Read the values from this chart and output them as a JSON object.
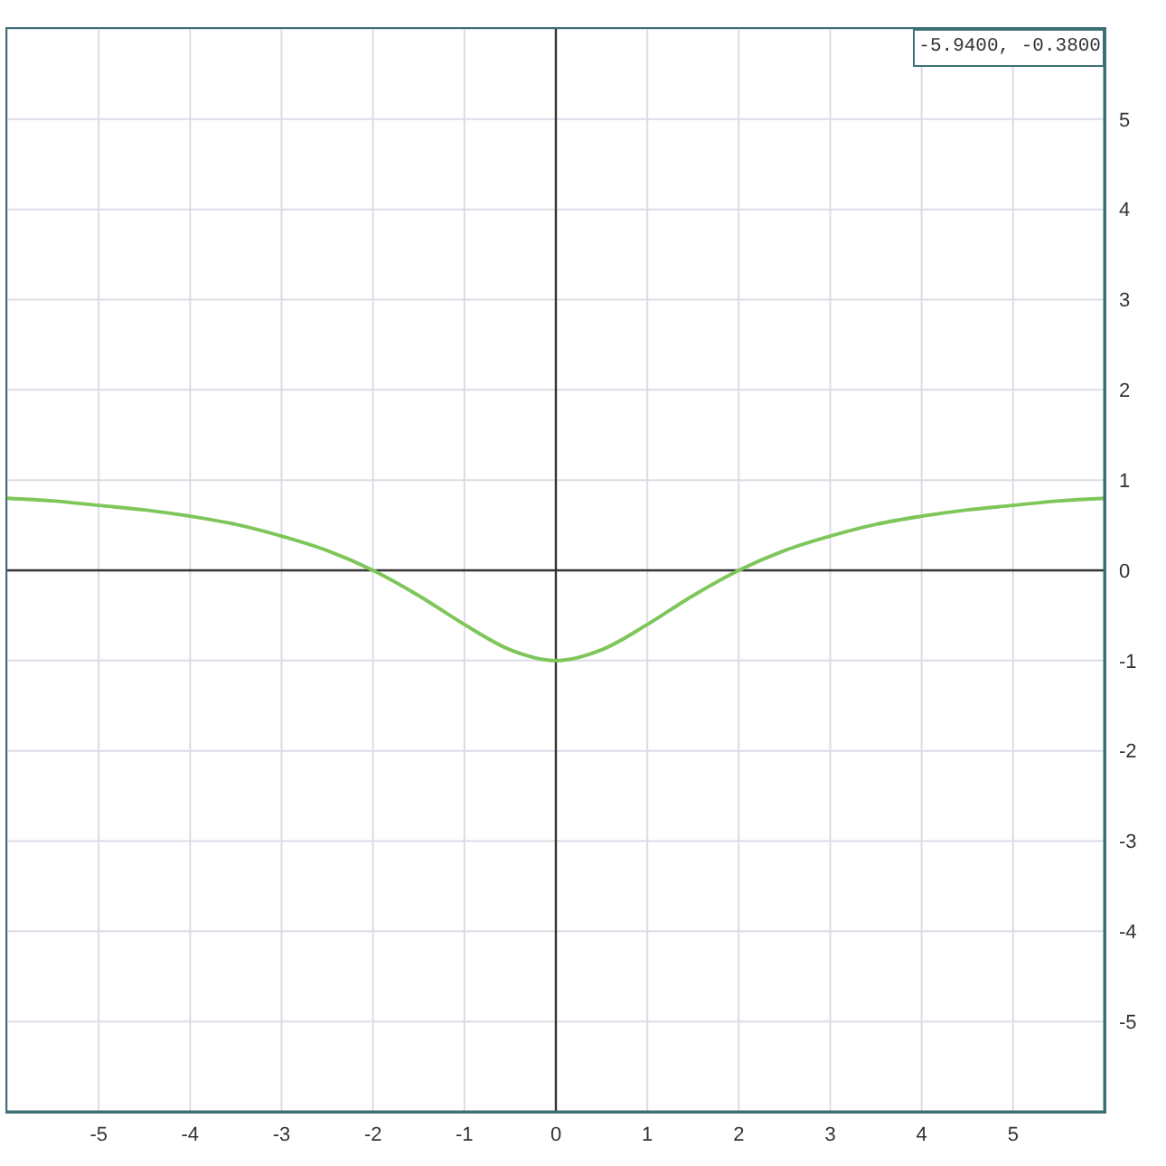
{
  "chart_data": {
    "type": "line",
    "x": [
      -6,
      -5.5,
      -5,
      -4.5,
      -4,
      -3.5,
      -3,
      -2.5,
      -2,
      -1.5,
      -1,
      -0.5,
      0,
      0.5,
      1,
      1.5,
      2,
      2.5,
      3,
      3.5,
      4,
      4.5,
      5,
      5.5,
      6
    ],
    "series": [
      {
        "color": "#7fc65a",
        "values": [
          0.8,
          0.77,
          0.72,
          0.67,
          0.6,
          0.51,
          0.38,
          0.22,
          0,
          -0.28,
          -0.6,
          -0.88,
          -1,
          -0.88,
          -0.6,
          -0.28,
          0,
          0.22,
          0.38,
          0.51,
          0.6,
          0.67,
          0.72,
          0.77,
          0.8
        ]
      }
    ],
    "xlim": [
      -6,
      6
    ],
    "ylim": [
      -6,
      6
    ],
    "xticks": [
      -5,
      -4,
      -3,
      -2,
      -1,
      0,
      1,
      2,
      3,
      4,
      5
    ],
    "yticks": [
      -5,
      -4,
      -3,
      -2,
      -1,
      0,
      1,
      2,
      3,
      4,
      5
    ],
    "grid": true,
    "marker": "none",
    "annotations": [
      "-5.9400, -0.3800"
    ]
  }
}
